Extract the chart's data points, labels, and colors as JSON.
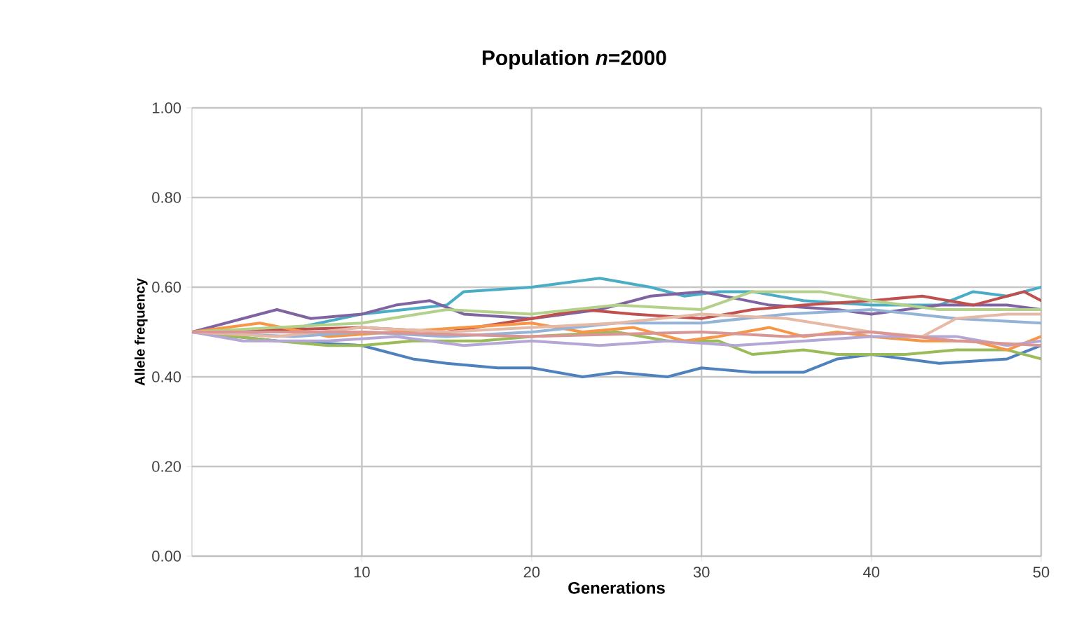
{
  "chart_data": {
    "type": "line",
    "title": "Population *n*=2000",
    "xlabel": "Generations",
    "ylabel": "Allele frequency",
    "xlim": [
      0,
      50
    ],
    "ylim": [
      0,
      1
    ],
    "xticks": [
      10,
      20,
      30,
      40,
      50
    ],
    "yticks": [
      {
        "value": 0,
        "label": "0.00"
      },
      {
        "value": 0.2,
        "label": "0.20"
      },
      {
        "value": 0.4,
        "label": "0.40"
      },
      {
        "value": 0.6,
        "label": "0.60"
      },
      {
        "value": 0.8,
        "label": "0.80"
      },
      {
        "value": 1,
        "label": "1.00"
      }
    ],
    "grid": true,
    "marker": "none",
    "line_style": "solid",
    "series": [
      {
        "color": "#4f81bd",
        "x": [
          0,
          5,
          10,
          13,
          15,
          18,
          20,
          23,
          25,
          28,
          30,
          33,
          36,
          38,
          40,
          44,
          48,
          50
        ],
        "values": [
          0.5,
          0.48,
          0.47,
          0.44,
          0.43,
          0.42,
          0.42,
          0.4,
          0.41,
          0.4,
          0.42,
          0.41,
          0.41,
          0.44,
          0.45,
          0.43,
          0.44,
          0.47
        ]
      },
      {
        "color": "#4bacc6",
        "x": [
          0,
          5,
          10,
          15,
          16,
          20,
          24,
          27,
          29,
          31,
          33,
          36,
          40,
          44,
          46,
          48,
          50
        ],
        "values": [
          0.5,
          0.5,
          0.54,
          0.56,
          0.59,
          0.6,
          0.62,
          0.6,
          0.58,
          0.59,
          0.59,
          0.57,
          0.56,
          0.56,
          0.59,
          0.58,
          0.6
        ]
      },
      {
        "color": "#8064a2",
        "x": [
          0,
          3,
          5,
          7,
          10,
          12,
          14,
          16,
          20,
          24,
          27,
          30,
          34,
          38,
          40,
          44,
          48,
          50
        ],
        "values": [
          0.5,
          0.53,
          0.55,
          0.53,
          0.54,
          0.56,
          0.57,
          0.54,
          0.53,
          0.55,
          0.58,
          0.59,
          0.56,
          0.55,
          0.54,
          0.56,
          0.56,
          0.55
        ]
      },
      {
        "color": "#c0504d",
        "x": [
          0,
          10,
          15,
          20,
          23,
          26,
          30,
          33,
          36,
          40,
          43,
          46,
          49,
          50
        ],
        "values": [
          0.5,
          0.51,
          0.5,
          0.53,
          0.55,
          0.54,
          0.53,
          0.55,
          0.56,
          0.57,
          0.58,
          0.56,
          0.59,
          0.57
        ]
      },
      {
        "color": "#9bbb59",
        "x": [
          0,
          5,
          8,
          10,
          13,
          17,
          20,
          25,
          28,
          31,
          33,
          36,
          38,
          42,
          45,
          48,
          50
        ],
        "values": [
          0.5,
          0.48,
          0.47,
          0.47,
          0.48,
          0.48,
          0.49,
          0.5,
          0.48,
          0.48,
          0.45,
          0.46,
          0.45,
          0.45,
          0.46,
          0.46,
          0.44
        ]
      },
      {
        "color": "#f79646",
        "x": [
          0,
          4,
          8,
          12,
          16,
          20,
          23,
          26,
          29,
          31,
          34,
          36,
          38,
          40,
          43,
          46,
          48,
          50
        ],
        "values": [
          0.5,
          0.52,
          0.49,
          0.5,
          0.51,
          0.52,
          0.5,
          0.51,
          0.48,
          0.49,
          0.51,
          0.49,
          0.5,
          0.49,
          0.48,
          0.48,
          0.46,
          0.49
        ]
      },
      {
        "color": "#b3d18a",
        "x": [
          0,
          5,
          10,
          15,
          20,
          25,
          30,
          33,
          37,
          40,
          44,
          48,
          50
        ],
        "values": [
          0.5,
          0.51,
          0.52,
          0.55,
          0.54,
          0.56,
          0.55,
          0.59,
          0.59,
          0.57,
          0.55,
          0.55,
          0.55
        ]
      },
      {
        "color": "#b4a7d6",
        "x": [
          0,
          3,
          8,
          12,
          16,
          20,
          24,
          28,
          32,
          36,
          40,
          45,
          48,
          50
        ],
        "values": [
          0.5,
          0.48,
          0.48,
          0.49,
          0.47,
          0.48,
          0.47,
          0.48,
          0.47,
          0.48,
          0.49,
          0.49,
          0.47,
          0.48
        ]
      },
      {
        "color": "#95b3d7",
        "x": [
          0,
          6,
          10,
          15,
          20,
          25,
          30,
          35,
          40,
          45,
          50
        ],
        "values": [
          0.5,
          0.49,
          0.5,
          0.49,
          0.5,
          0.52,
          0.52,
          0.54,
          0.55,
          0.53,
          0.52
        ]
      },
      {
        "color": "#e6b9a6",
        "x": [
          0,
          5,
          10,
          15,
          20,
          25,
          30,
          35,
          40,
          43,
          45,
          48,
          50
        ],
        "values": [
          0.5,
          0.49,
          0.51,
          0.5,
          0.51,
          0.52,
          0.54,
          0.53,
          0.5,
          0.49,
          0.53,
          0.54,
          0.54
        ]
      },
      {
        "color": "#d99694",
        "x": [
          0,
          10,
          20,
          30,
          35,
          40,
          45,
          50
        ],
        "values": [
          0.5,
          0.5,
          0.49,
          0.5,
          0.49,
          0.5,
          0.48,
          0.47
        ]
      }
    ]
  }
}
